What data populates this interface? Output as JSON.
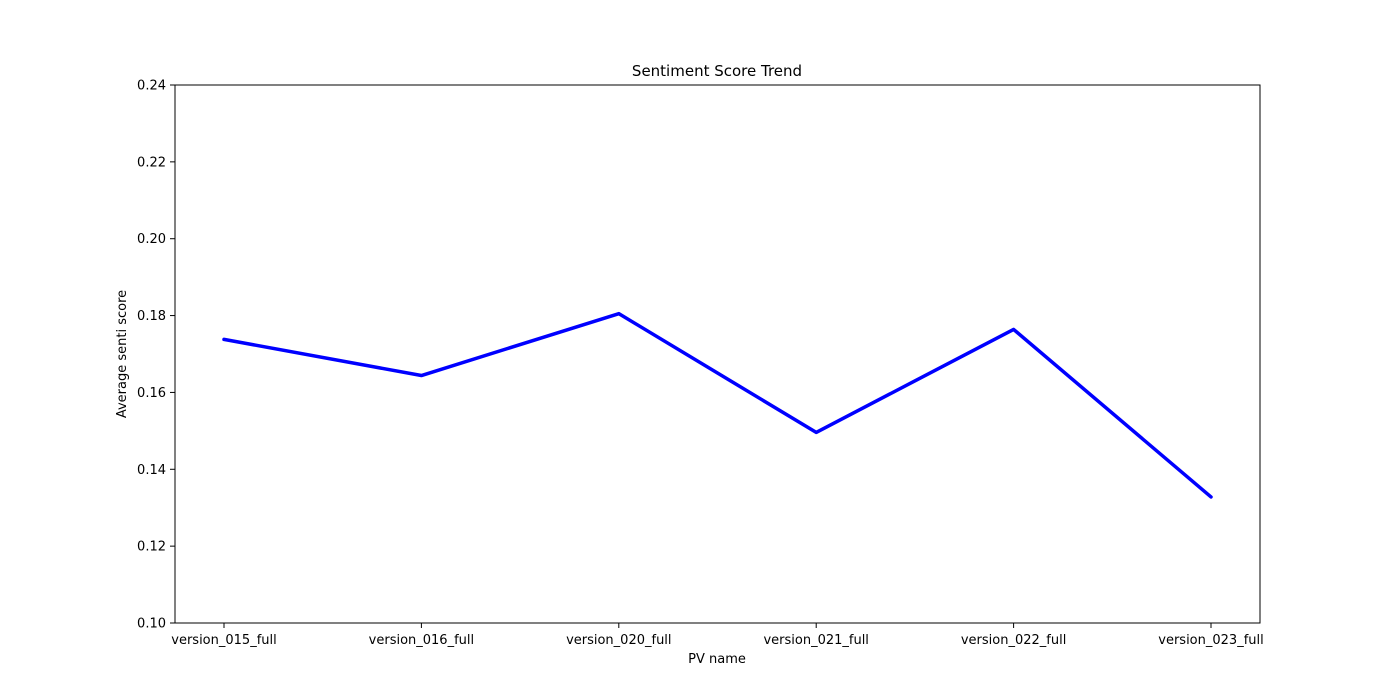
{
  "chart_data": {
    "type": "line",
    "title": "Sentiment Score Trend",
    "xlabel": "PV name",
    "ylabel": "Average senti score",
    "categories": [
      "version_015_full",
      "version_016_full",
      "version_020_full",
      "version_021_full",
      "version_022_full",
      "version_023_full"
    ],
    "series": [
      {
        "values": [
          0.1738,
          0.1644,
          0.1805,
          0.1496,
          0.1764,
          0.1328
        ],
        "color": "#0000ff"
      }
    ],
    "ylim": [
      0.1,
      0.24
    ],
    "yticks": [
      "0.10",
      "0.12",
      "0.14",
      "0.16",
      "0.18",
      "0.20",
      "0.22",
      "0.24"
    ],
    "grid": false,
    "legend": "none"
  }
}
